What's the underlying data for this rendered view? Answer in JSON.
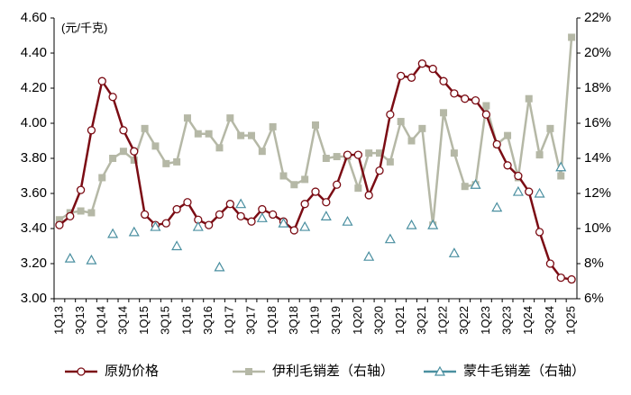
{
  "chart_data": {
    "type": "line",
    "unit_label": "(元/千克)",
    "categories": [
      "1Q13",
      null,
      "3Q13",
      null,
      "1Q14",
      null,
      "3Q14",
      null,
      "1Q15",
      null,
      "3Q15",
      null,
      "1Q16",
      null,
      "3Q16",
      null,
      "1Q17",
      null,
      "3Q17",
      null,
      "1Q18",
      null,
      "3Q18",
      null,
      "1Q19",
      null,
      "3Q19",
      null,
      "1Q20",
      null,
      "3Q20",
      null,
      "1Q21",
      null,
      "3Q21",
      null,
      "1Q22",
      null,
      "3Q22",
      null,
      "1Q23",
      null,
      "3Q23",
      null,
      "1Q24",
      null,
      "3Q24",
      null,
      "1Q25"
    ],
    "series": [
      {
        "name": "原奶价格",
        "color": "#7b0c14",
        "marker": "circle",
        "line": true,
        "values": [
          3.42,
          3.47,
          3.62,
          3.96,
          4.24,
          4.15,
          3.96,
          3.84,
          3.48,
          3.42,
          3.43,
          3.51,
          3.55,
          3.45,
          3.42,
          3.48,
          3.54,
          3.47,
          3.44,
          3.51,
          3.48,
          3.44,
          3.39,
          3.54,
          3.61,
          3.55,
          3.65,
          3.82,
          3.82,
          3.59,
          3.73,
          4.05,
          4.27,
          4.26,
          4.34,
          4.31,
          4.24,
          4.17,
          4.14,
          4.13,
          4.05,
          3.88,
          3.76,
          3.7,
          3.61,
          3.38,
          3.2,
          3.12,
          3.11
        ]
      },
      {
        "name": "伊利毛销差（右轴）",
        "color": "#b5b8a6",
        "marker": "square",
        "line": true,
        "axis": "y2",
        "values": [
          10.5,
          10.9,
          11.0,
          10.9,
          12.9,
          14.0,
          14.4,
          13.9,
          15.7,
          14.7,
          13.7,
          13.8,
          16.3,
          15.4,
          15.4,
          14.6,
          16.3,
          15.3,
          15.3,
          14.4,
          15.8,
          13.0,
          12.5,
          12.8,
          15.9,
          14.0,
          14.1,
          14.1,
          12.3,
          14.3,
          14.3,
          13.8,
          16.1,
          15.0,
          15.7,
          10.2,
          16.6,
          14.3,
          12.4,
          12.5,
          17.0,
          14.8,
          15.3,
          12.9,
          17.4,
          14.2,
          15.7,
          13.0,
          20.9
        ]
      },
      {
        "name": "蒙牛毛销差（右轴）",
        "color": "#4a8fa0",
        "marker": "triangle",
        "line": false,
        "axis": "y2",
        "values": [
          null,
          8.3,
          null,
          8.2,
          null,
          9.7,
          null,
          9.8,
          null,
          10.1,
          null,
          9.0,
          null,
          10.1,
          null,
          7.8,
          null,
          11.4,
          null,
          10.6,
          null,
          10.3,
          null,
          10.1,
          null,
          10.7,
          null,
          10.4,
          null,
          8.4,
          null,
          9.4,
          null,
          10.2,
          null,
          10.2,
          null,
          8.6,
          null,
          12.5,
          null,
          11.2,
          null,
          12.1,
          null,
          12.0,
          null,
          13.5,
          null
        ]
      }
    ],
    "ylim": [
      3.0,
      4.6
    ],
    "yticks": [
      {
        "value": 3.0,
        "label": "3.00"
      },
      {
        "value": 3.2,
        "label": "3.20"
      },
      {
        "value": 3.4,
        "label": "3.40"
      },
      {
        "value": 3.6,
        "label": "3.60"
      },
      {
        "value": 3.8,
        "label": "3.80"
      },
      {
        "value": 4.0,
        "label": "4.00"
      },
      {
        "value": 4.2,
        "label": "4.20"
      },
      {
        "value": 4.4,
        "label": "4.40"
      },
      {
        "value": 4.6,
        "label": "4.60"
      }
    ],
    "y2lim": [
      6,
      22
    ],
    "y2ticks": [
      {
        "value": 6,
        "label": "6%"
      },
      {
        "value": 8,
        "label": "8%"
      },
      {
        "value": 10,
        "label": "10%"
      },
      {
        "value": 12,
        "label": "12%"
      },
      {
        "value": 14,
        "label": "14%"
      },
      {
        "value": 16,
        "label": "16%"
      },
      {
        "value": 18,
        "label": "18%"
      },
      {
        "value": 20,
        "label": "20%"
      },
      {
        "value": 22,
        "label": "22%"
      }
    ],
    "grid": false
  }
}
